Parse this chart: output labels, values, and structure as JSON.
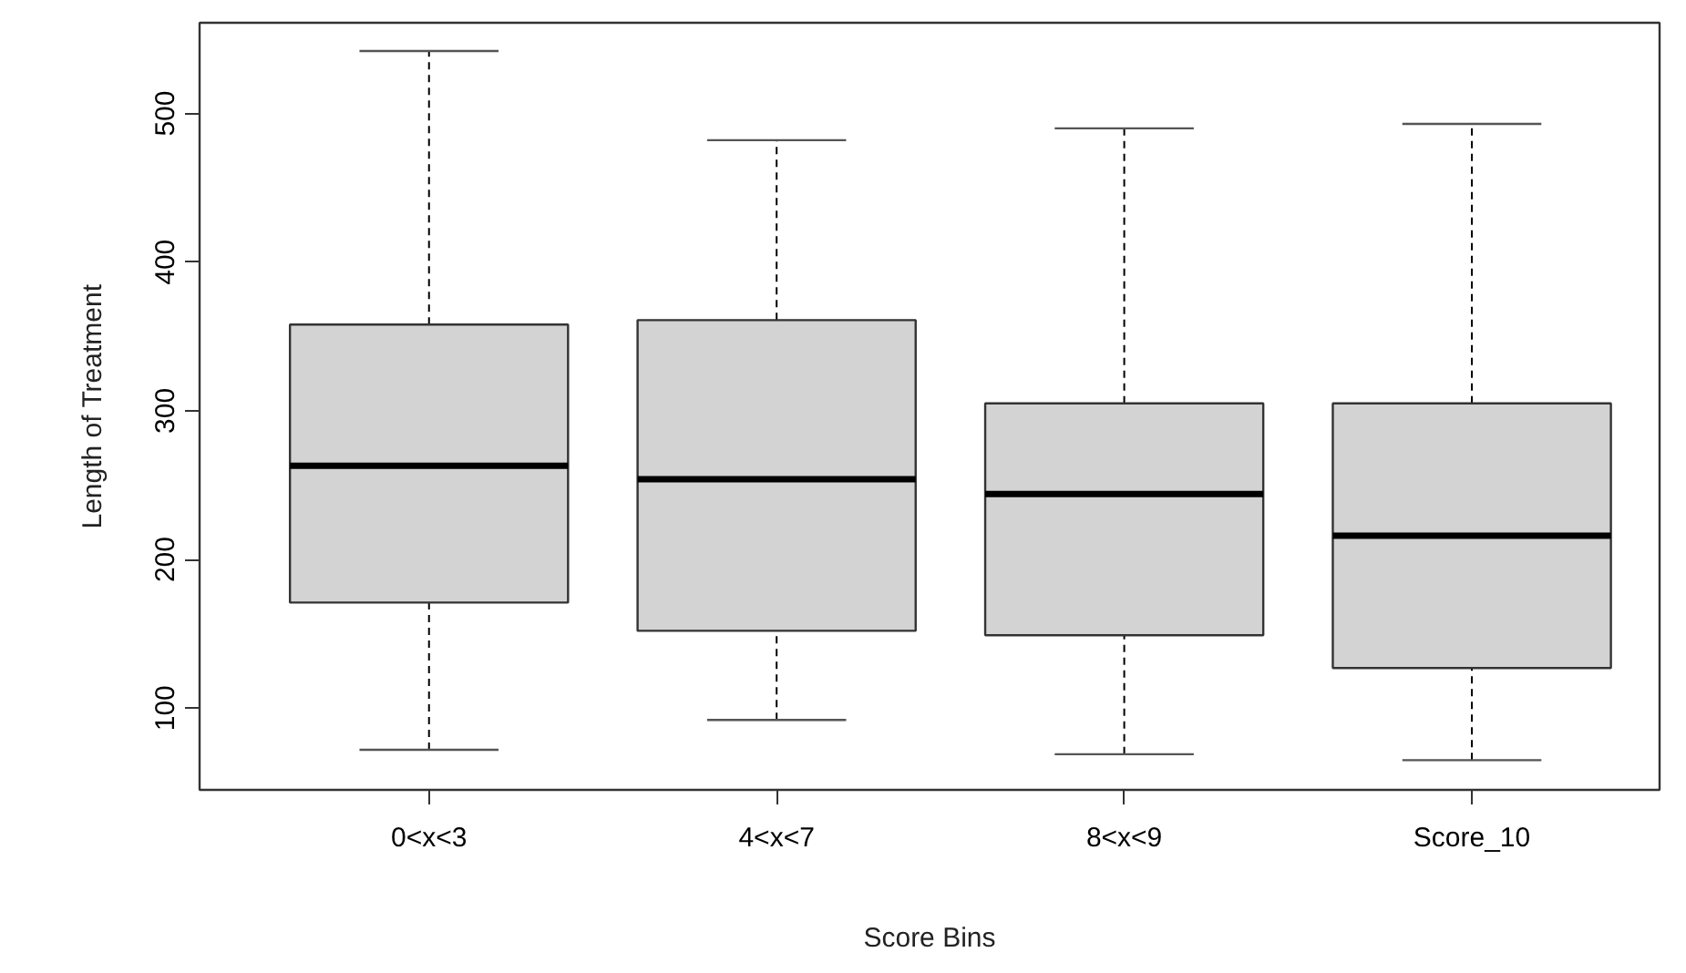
{
  "chart_data": {
    "type": "box",
    "xlabel": "Score Bins",
    "ylabel": "Length of Treatment",
    "categories": [
      "0<x<3",
      "4<x<7",
      "8<x<9",
      "Score_10"
    ],
    "color": "#d3d3d3",
    "boxes": [
      {
        "low": 72,
        "q1": 171,
        "median": 263,
        "q3": 358,
        "high": 542
      },
      {
        "low": 92,
        "q1": 152,
        "median": 254,
        "q3": 361,
        "high": 482
      },
      {
        "low": 69,
        "q1": 149,
        "median": 244,
        "q3": 305,
        "high": 490
      },
      {
        "low": 65,
        "q1": 127,
        "median": 216,
        "q3": 305,
        "high": 493
      }
    ],
    "ylim": [
      45,
      561
    ],
    "yticks": [
      100,
      200,
      300,
      400,
      500
    ]
  }
}
